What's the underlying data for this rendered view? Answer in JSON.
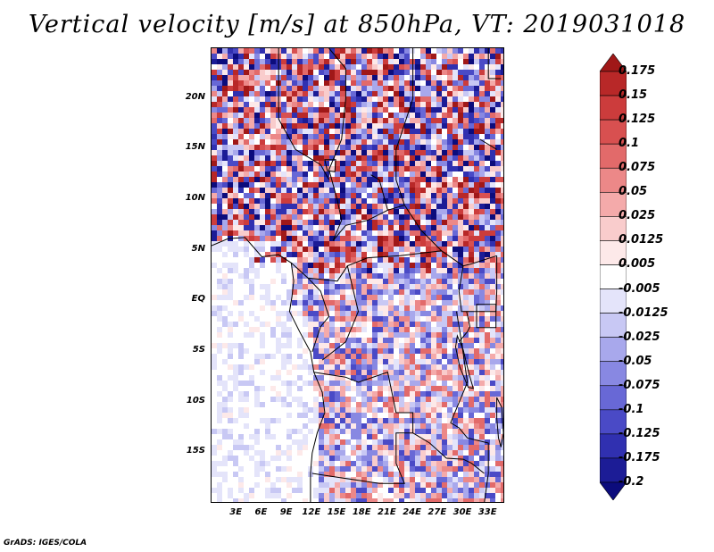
{
  "title": "Vertical velocity [m/s] at 850hPa, VT: 2019031018",
  "credit": "GrADS: IGES/COLA",
  "map": {
    "lon_range": [
      0,
      35
    ],
    "lat_range": [
      -20,
      25
    ],
    "lat_ticks": [
      {
        "lat": 20,
        "label": "20N"
      },
      {
        "lat": 15,
        "label": "15N"
      },
      {
        "lat": 10,
        "label": "10N"
      },
      {
        "lat": 5,
        "label": "5N"
      },
      {
        "lat": 0,
        "label": "EQ"
      },
      {
        "lat": -5,
        "label": "5S"
      },
      {
        "lat": -10,
        "label": "10S"
      },
      {
        "lat": -15,
        "label": "15S"
      }
    ],
    "lon_ticks": [
      {
        "lon": 3,
        "label": "3E"
      },
      {
        "lon": 6,
        "label": "6E"
      },
      {
        "lon": 9,
        "label": "9E"
      },
      {
        "lon": 12,
        "label": "12E"
      },
      {
        "lon": 15,
        "label": "15E"
      },
      {
        "lon": 18,
        "label": "18E"
      },
      {
        "lon": 21,
        "label": "21E"
      },
      {
        "lon": 24,
        "label": "24E"
      },
      {
        "lon": 27,
        "label": "27E"
      },
      {
        "lon": 30,
        "label": "30E"
      },
      {
        "lon": 33,
        "label": "33E"
      }
    ]
  },
  "colorbar": {
    "labels": [
      "0.175",
      "0.15",
      "0.125",
      "0.1",
      "0.075",
      "0.05",
      "0.025",
      "0.0125",
      "0.005",
      "-0.005",
      "-0.0125",
      "-0.025",
      "-0.05",
      "-0.075",
      "-0.1",
      "-0.125",
      "-0.175",
      "-0.2"
    ],
    "colors": [
      "#a01818",
      "#b82828",
      "#cc3c3c",
      "#d85050",
      "#e26a6a",
      "#ec8888",
      "#f4aaaa",
      "#f9cccc",
      "#fde9e9",
      "#ffffff",
      "#e4e4fa",
      "#c8c8f4",
      "#a8a8ec",
      "#8888e2",
      "#6868d6",
      "#4a4ac6",
      "#3030b0",
      "#1c1c96",
      "#0c0c7c"
    ]
  }
}
